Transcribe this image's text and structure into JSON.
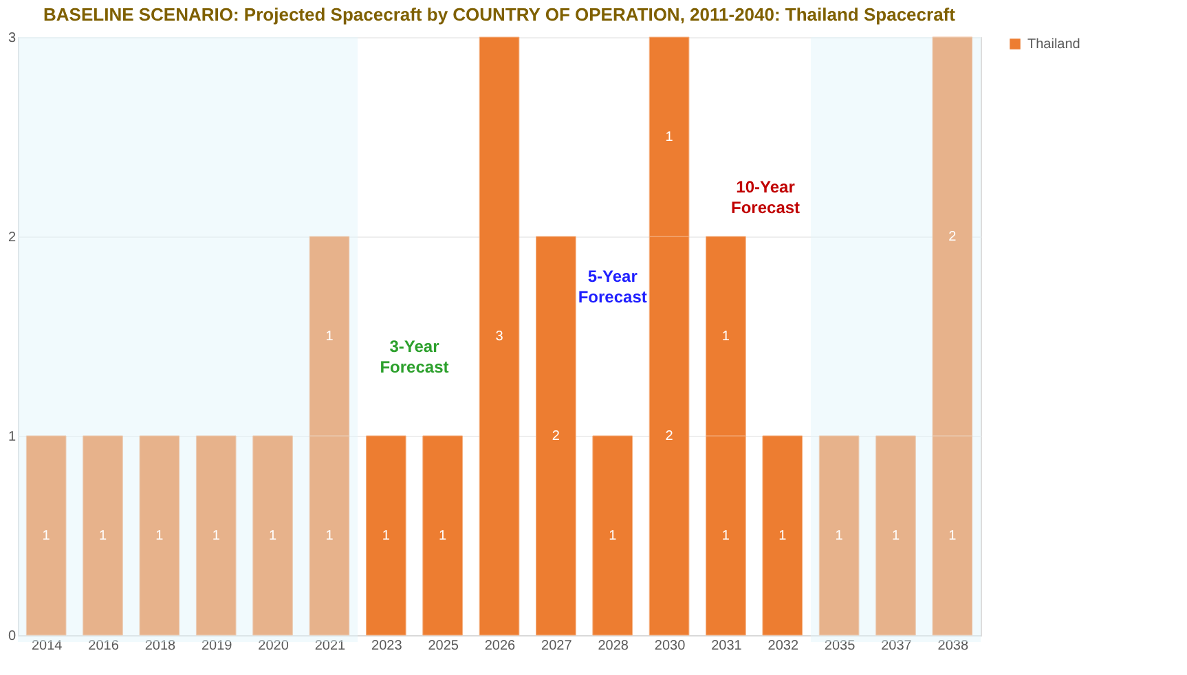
{
  "chart_data": {
    "type": "bar",
    "title": "BASELINE SCENARIO: Projected Spacecraft by COUNTRY OF OPERATION, 2011-2040: Thailand Spacecraft",
    "categories": [
      "2014",
      "2016",
      "2018",
      "2019",
      "2020",
      "2021",
      "2023",
      "2025",
      "2026",
      "2027",
      "2028",
      "2030",
      "2031",
      "2032",
      "2035",
      "2037",
      "2038"
    ],
    "series": [
      {
        "name": "Thailand",
        "color": "#ed7d31",
        "values": [
          1,
          1,
          1,
          1,
          1,
          1,
          1,
          1,
          3,
          2,
          1,
          2,
          1,
          1,
          1,
          1,
          1
        ]
      },
      {
        "color": "#ed7d31",
        "values": [
          null,
          null,
          null,
          null,
          null,
          1,
          null,
          null,
          null,
          null,
          null,
          1,
          1,
          null,
          null,
          null,
          2
        ]
      }
    ],
    "stacked": true,
    "data_labels": true,
    "ylim": [
      0,
      3
    ],
    "yticks": [
      0,
      1,
      2,
      3
    ],
    "grid": "y",
    "legend": "right",
    "bands": [
      {
        "axis": "x",
        "from": "2014",
        "to": "2021",
        "color": "#dff3fb"
      },
      {
        "axis": "x",
        "from": "2035",
        "to": "2038",
        "color": "#dff3fb"
      }
    ],
    "annotations": [
      "3-Year Forecast",
      "5-Year Forecast",
      "10-Year Forecast"
    ]
  }
}
